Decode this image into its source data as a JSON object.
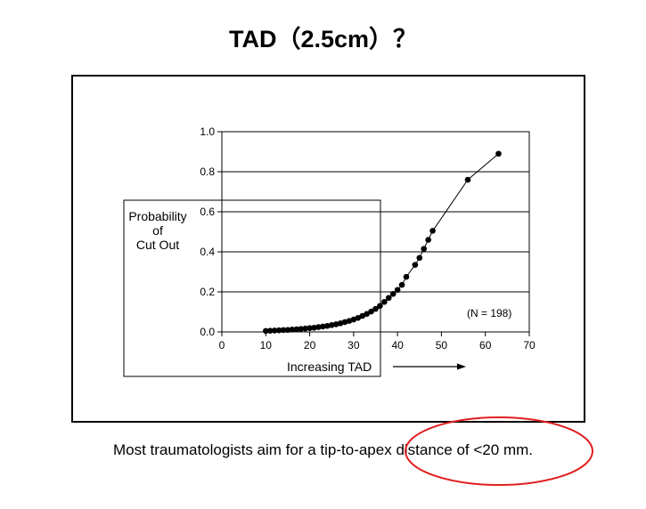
{
  "slide": {
    "title": "TAD（2.5cm）？",
    "caption": "Most traumatologists aim for a tip-to-apex distance of <20 mm."
  },
  "colors": {
    "highlight": "#e02020",
    "ink": "#000000"
  },
  "chart_data": {
    "type": "line",
    "title": "",
    "ylabel_lines": [
      "Probability",
      "of",
      "Cut Out"
    ],
    "xlabel": "Increasing TAD",
    "annotation": "(N = 198)",
    "xlim": [
      0,
      70
    ],
    "ylim": [
      0,
      1.0
    ],
    "x_ticks": [
      "0",
      "10",
      "20",
      "30",
      "40",
      "50",
      "60",
      "70"
    ],
    "y_ticks": [
      "0.0",
      "0.2",
      "0.4",
      "0.6",
      "0.8",
      "1.0"
    ],
    "grid": "horizontal",
    "series": [
      {
        "x": [
          10,
          11,
          12,
          13,
          14,
          15,
          16,
          17,
          18,
          19,
          20,
          21,
          22,
          23,
          24,
          25,
          26,
          27,
          28,
          29,
          30,
          31,
          32,
          33,
          34,
          35,
          36,
          37,
          38,
          39,
          40,
          41,
          42,
          44,
          45,
          46,
          47,
          48,
          56,
          63
        ],
        "y": [
          0.005,
          0.006,
          0.007,
          0.008,
          0.009,
          0.01,
          0.012,
          0.013,
          0.015,
          0.017,
          0.019,
          0.021,
          0.024,
          0.027,
          0.03,
          0.034,
          0.038,
          0.043,
          0.049,
          0.055,
          0.062,
          0.07,
          0.08,
          0.09,
          0.102,
          0.115,
          0.13,
          0.15,
          0.17,
          0.19,
          0.21,
          0.235,
          0.275,
          0.335,
          0.37,
          0.415,
          0.46,
          0.505,
          0.76,
          0.89
        ]
      }
    ]
  }
}
